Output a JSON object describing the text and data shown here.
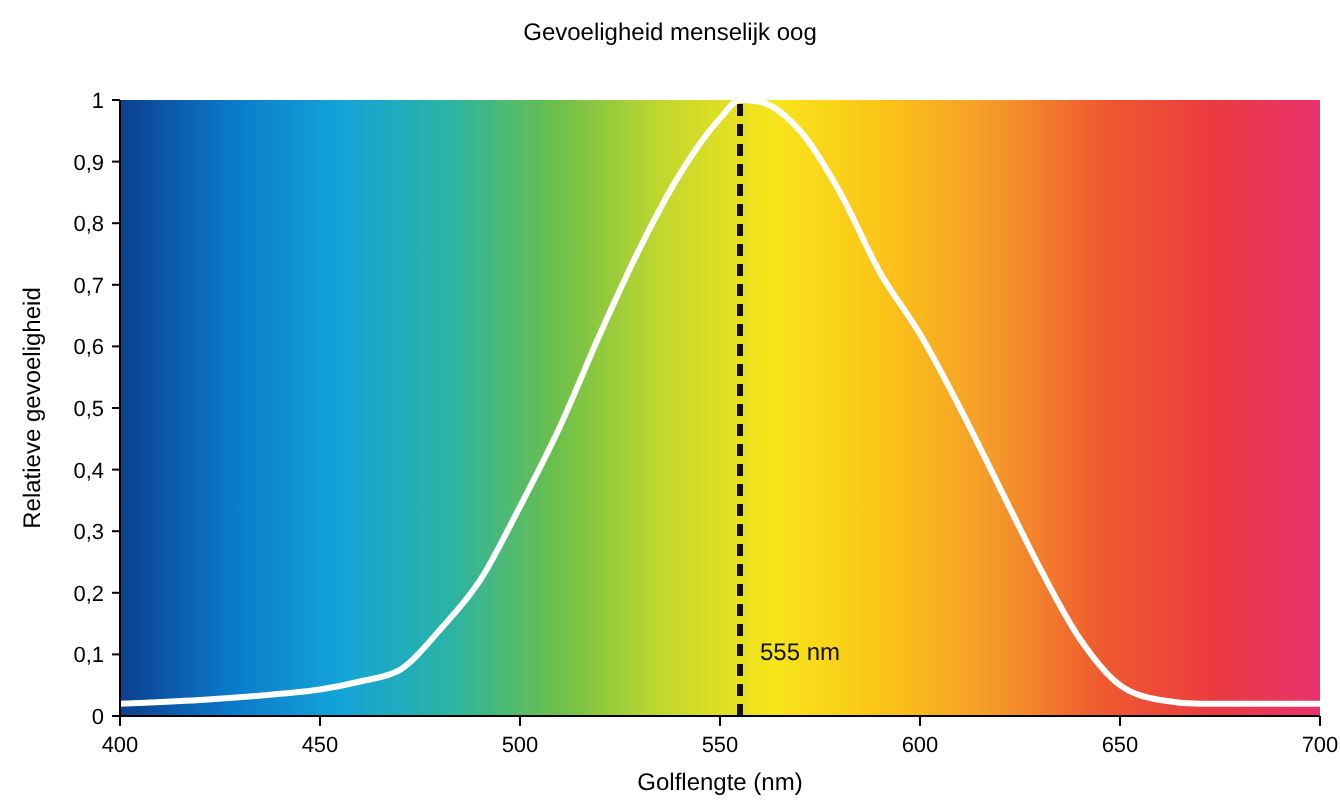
{
  "chart_data": {
    "type": "line",
    "title": "Gevoeligheid menselijk oog",
    "xlabel": "Golflengte (nm)",
    "ylabel": "Relatieve gevoeligheid",
    "x": [
      400,
      420,
      440,
      450,
      460,
      470,
      480,
      490,
      500,
      510,
      520,
      530,
      540,
      550,
      555,
      560,
      570,
      580,
      590,
      600,
      610,
      620,
      630,
      640,
      650,
      660,
      670,
      680,
      690,
      700
    ],
    "series": [
      {
        "color": "#ffffff",
        "values": [
          0.02,
          0.026,
          0.036,
          0.043,
          0.056,
          0.075,
          0.14,
          0.22,
          0.34,
          0.47,
          0.62,
          0.76,
          0.88,
          0.97,
          1.0,
          0.997,
          0.95,
          0.85,
          0.72,
          0.62,
          0.5,
          0.37,
          0.24,
          0.125,
          0.05,
          0.026,
          0.02,
          0.02,
          0.02,
          0.02
        ]
      }
    ],
    "xlim": [
      400,
      700
    ],
    "xticks": [
      400,
      450,
      500,
      550,
      600,
      650,
      700
    ],
    "ylim": [
      0,
      1
    ],
    "yticks": [
      0,
      {
        "value": 0.1,
        "label": "0,1"
      },
      {
        "value": 0.2,
        "label": "0,2"
      },
      {
        "value": 0.3,
        "label": "0,3"
      },
      {
        "value": 0.4,
        "label": "0,4"
      },
      {
        "value": 0.5,
        "label": "0,5"
      },
      {
        "value": 0.6,
        "label": "0,6"
      },
      {
        "value": 0.7,
        "label": "0,7"
      },
      {
        "value": 0.8,
        "label": "0,8"
      },
      {
        "value": 0.9,
        "label": "0,9"
      },
      1
    ],
    "ref_lines": [
      {
        "axis": "x",
        "value": 555,
        "label": "555 nm",
        "color": "#111111",
        "line_style": "dashed"
      }
    ],
    "marker": "none",
    "line_style": "solid"
  }
}
